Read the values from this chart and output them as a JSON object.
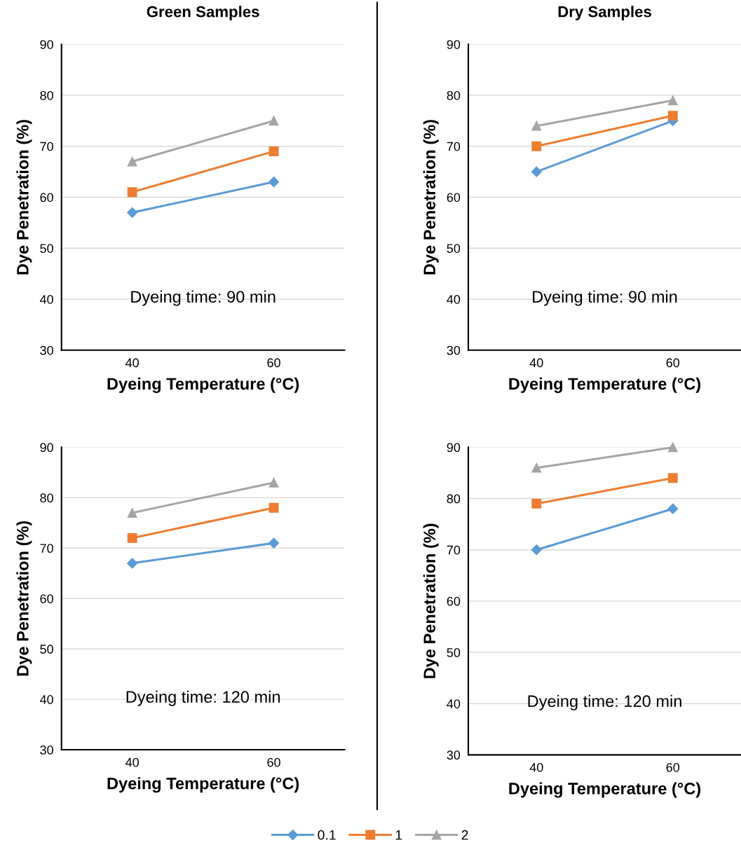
{
  "chart_data": [
    {
      "type": "line",
      "legend": "bottom",
      "title": "Green Samples",
      "xlabel": "Dyeing Temperature (°C)",
      "ylabel": "Dye Penetration (%)",
      "categories": [
        "40",
        "60"
      ],
      "ylim": [
        30,
        90
      ],
      "yticks": [
        30,
        40,
        50,
        60,
        70,
        80,
        90
      ],
      "grid": "y",
      "annotations": [
        "Dyeing time: 90 min"
      ],
      "series": [
        {
          "name": "0.1",
          "color": "#5b9bd5",
          "marker": "diamond",
          "values": [
            57,
            63
          ]
        },
        {
          "name": "1",
          "color": "#ed7d31",
          "marker": "square",
          "values": [
            61,
            69
          ]
        },
        {
          "name": "2",
          "color": "#a5a5a5",
          "marker": "triangle",
          "values": [
            67,
            75
          ]
        }
      ]
    },
    {
      "type": "line",
      "legend": "bottom",
      "title": "Dry Samples",
      "xlabel": "Dyeing Temperature (°C)",
      "ylabel": "Dye Penetration (%)",
      "categories": [
        "40",
        "60"
      ],
      "ylim": [
        30,
        90
      ],
      "yticks": [
        30,
        40,
        50,
        60,
        70,
        80,
        90
      ],
      "grid": "y",
      "annotations": [
        "Dyeing time: 90 min"
      ],
      "series": [
        {
          "name": "0.1",
          "color": "#5b9bd5",
          "marker": "diamond",
          "values": [
            65,
            75
          ]
        },
        {
          "name": "1",
          "color": "#ed7d31",
          "marker": "square",
          "values": [
            70,
            76
          ]
        },
        {
          "name": "2",
          "color": "#a5a5a5",
          "marker": "triangle",
          "values": [
            74,
            79
          ]
        }
      ]
    },
    {
      "type": "line",
      "legend": "bottom",
      "xlabel": "Dyeing Temperature (°C)",
      "ylabel": "Dye Penetration (%)",
      "categories": [
        "40",
        "60"
      ],
      "ylim": [
        30,
        90
      ],
      "yticks": [
        30,
        40,
        50,
        60,
        70,
        80,
        90
      ],
      "grid": "y",
      "annotations": [
        "Dyeing time: 120 min"
      ],
      "series": [
        {
          "name": "0.1",
          "color": "#5b9bd5",
          "marker": "diamond",
          "values": [
            67,
            71
          ]
        },
        {
          "name": "1",
          "color": "#ed7d31",
          "marker": "square",
          "values": [
            72,
            78
          ]
        },
        {
          "name": "2",
          "color": "#a5a5a5",
          "marker": "triangle",
          "values": [
            77,
            83
          ]
        }
      ]
    },
    {
      "type": "line",
      "legend": "bottom",
      "xlabel": "Dyeing Temperature (°C)",
      "ylabel": "Dye Penetration (%)",
      "categories": [
        "40",
        "60"
      ],
      "ylim": [
        30,
        90
      ],
      "yticks": [
        30,
        40,
        50,
        60,
        70,
        80,
        90
      ],
      "grid": "y",
      "annotations": [
        "Dyeing time: 120 min"
      ],
      "series": [
        {
          "name": "0.1",
          "color": "#5b9bd5",
          "marker": "diamond",
          "values": [
            70,
            78
          ]
        },
        {
          "name": "1",
          "color": "#ed7d31",
          "marker": "square",
          "values": [
            79,
            84
          ]
        },
        {
          "name": "2",
          "color": "#a5a5a5",
          "marker": "triangle",
          "values": [
            86,
            90
          ]
        }
      ]
    }
  ]
}
